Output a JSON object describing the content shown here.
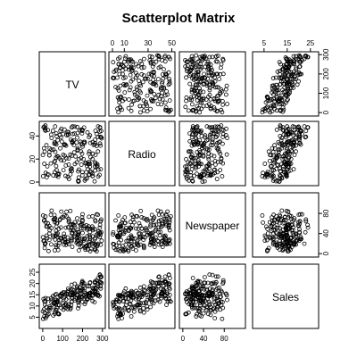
{
  "chart_data": {
    "type": "scatter",
    "title": "Scatterplot Matrix",
    "variables": [
      "TV",
      "Radio",
      "Newspaper",
      "Sales"
    ],
    "ranges": {
      "TV": [
        0.7,
        296.4
      ],
      "Radio": [
        0.0,
        49.6
      ],
      "Newspaper": [
        0.3,
        114.0
      ],
      "Sales": [
        1.6,
        27.0
      ]
    },
    "axes": {
      "top": [
        {
          "column": "Radio",
          "ticks": [
            0,
            10,
            30,
            50
          ]
        },
        {
          "column": "Sales",
          "ticks": [
            5,
            15,
            25
          ]
        }
      ],
      "bottom": [
        {
          "column": "TV",
          "ticks": [
            0,
            100,
            200,
            300
          ]
        },
        {
          "column": "Newspaper",
          "ticks": [
            0,
            40,
            80
          ]
        }
      ],
      "left": [
        {
          "row": "Radio",
          "ticks": [
            0,
            20,
            40
          ]
        },
        {
          "row": "Sales",
          "ticks": [
            5,
            10,
            15,
            20,
            25
          ]
        }
      ],
      "right": [
        {
          "row": "TV",
          "ticks": [
            0,
            100,
            200,
            300
          ]
        },
        {
          "row": "Newspaper",
          "ticks": [
            0,
            40,
            80
          ]
        }
      ]
    },
    "point_count": 200,
    "grid": false,
    "legend": "none"
  }
}
